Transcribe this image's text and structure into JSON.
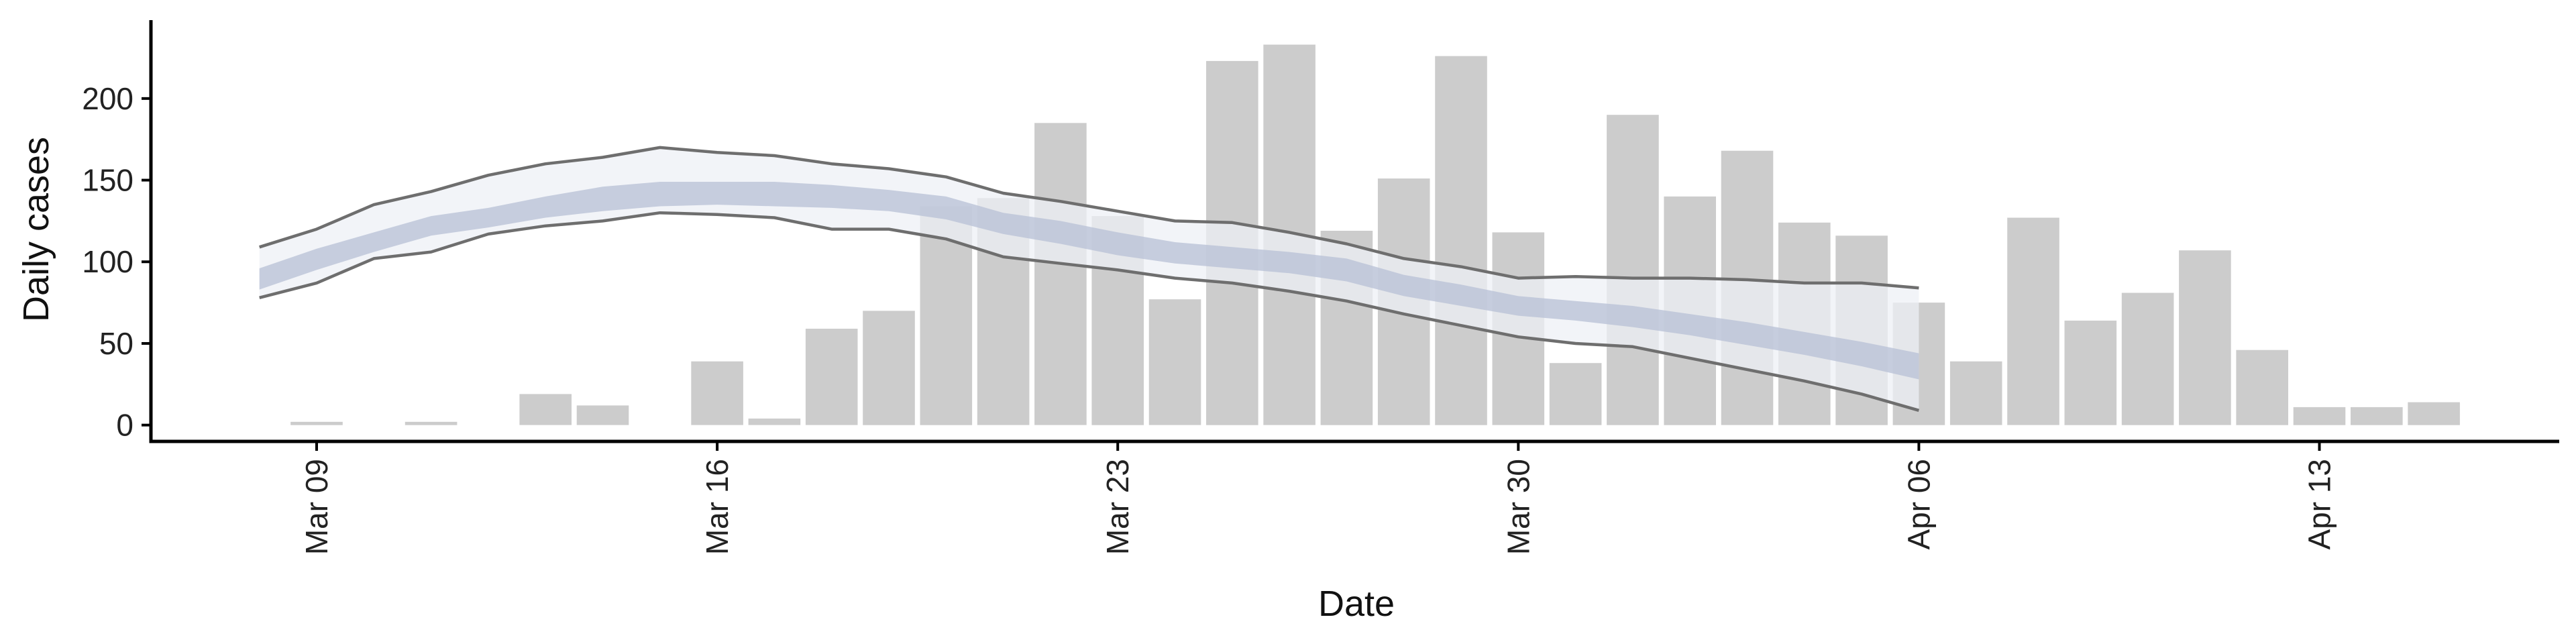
{
  "chart_data": {
    "type": "bar",
    "xlabel": "Date",
    "ylabel": "Daily cases",
    "ylim": [
      -10,
      248
    ],
    "yticks": [
      0,
      50,
      100,
      150,
      200
    ],
    "xticks": [
      "Mar 09",
      "Mar 16",
      "Mar 23",
      "Mar 30",
      "Apr 06",
      "Apr 13"
    ],
    "grid": false,
    "legend": "none",
    "bar_color": "#cccccc",
    "band_outer_color": "#eef0f6",
    "band_inner_color": "#b7c0d6",
    "line_color": "#6e6e6e",
    "bars": {
      "dates": [
        "Mar 09",
        "Mar 10",
        "Mar 11",
        "Mar 12",
        "Mar 13",
        "Mar 14",
        "Mar 15",
        "Mar 16",
        "Mar 17",
        "Mar 18",
        "Mar 19",
        "Mar 20",
        "Mar 21",
        "Mar 22",
        "Mar 23",
        "Mar 24",
        "Mar 25",
        "Mar 26",
        "Mar 27",
        "Mar 28",
        "Mar 29",
        "Mar 30",
        "Mar 31",
        "Apr 01",
        "Apr 02",
        "Apr 03",
        "Apr 04",
        "Apr 05",
        "Apr 06",
        "Apr 07",
        "Apr 08",
        "Apr 09",
        "Apr 10",
        "Apr 11",
        "Apr 12",
        "Apr 13",
        "Apr 14",
        "Apr 15"
      ],
      "values": [
        2,
        0,
        2,
        0,
        19,
        12,
        0,
        39,
        4,
        59,
        70,
        134,
        139,
        185,
        128,
        77,
        223,
        233,
        119,
        151,
        226,
        118,
        38,
        190,
        140,
        168,
        124,
        116,
        75,
        39,
        127,
        64,
        81,
        107,
        46,
        11,
        11,
        14
      ]
    },
    "estimate": {
      "dates": [
        "Mar 08",
        "Mar 09",
        "Mar 10",
        "Mar 11",
        "Mar 12",
        "Mar 13",
        "Mar 14",
        "Mar 15",
        "Mar 16",
        "Mar 17",
        "Mar 18",
        "Mar 19",
        "Mar 20",
        "Mar 21",
        "Mar 22",
        "Mar 23",
        "Mar 24",
        "Mar 25",
        "Mar 26",
        "Mar 27",
        "Mar 28",
        "Mar 29",
        "Mar 30",
        "Mar 31",
        "Apr 01",
        "Apr 02",
        "Apr 03",
        "Apr 04",
        "Apr 05",
        "Apr 06"
      ],
      "upper_90": [
        109,
        120,
        135,
        143,
        153,
        160,
        164,
        170,
        167,
        165,
        160,
        157,
        152,
        142,
        137,
        131,
        125,
        124,
        118,
        111,
        102,
        97,
        90,
        91,
        90,
        90,
        89,
        87,
        87,
        84
      ],
      "upper_50": [
        96,
        108,
        118,
        128,
        133,
        140,
        146,
        149,
        149,
        149,
        147,
        144,
        140,
        130,
        125,
        118,
        112,
        109,
        106,
        102,
        92,
        86,
        79,
        76,
        73,
        68,
        63,
        57,
        51,
        44
      ],
      "lower_50": [
        83,
        95,
        106,
        116,
        121,
        127,
        131,
        134,
        135,
        134,
        133,
        131,
        126,
        117,
        111,
        104,
        99,
        96,
        93,
        88,
        79,
        73,
        67,
        64,
        60,
        55,
        49,
        43,
        36,
        28
      ],
      "lower_90": [
        78,
        87,
        102,
        106,
        117,
        122,
        125,
        130,
        129,
        127,
        120,
        120,
        114,
        103,
        99,
        95,
        90,
        87,
        82,
        76,
        68,
        61,
        54,
        50,
        48,
        41,
        34,
        27,
        19,
        9
      ]
    }
  }
}
